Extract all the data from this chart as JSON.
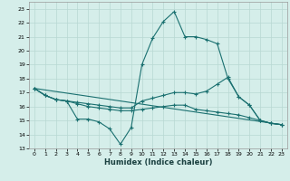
{
  "xlabel": "Humidex (Indice chaleur)",
  "bg_color": "#d5eeea",
  "grid_color": "#b8d8d3",
  "line_color": "#1a7070",
  "xlim": [
    -0.5,
    23.5
  ],
  "ylim": [
    13,
    23.5
  ],
  "yticks": [
    13,
    14,
    15,
    16,
    17,
    18,
    19,
    20,
    21,
    22,
    23
  ],
  "xticks": [
    0,
    1,
    2,
    3,
    4,
    5,
    6,
    7,
    8,
    9,
    10,
    11,
    12,
    13,
    14,
    15,
    16,
    17,
    18,
    19,
    20,
    21,
    22,
    23
  ],
  "line1_x": [
    0,
    1,
    2,
    3,
    4,
    5,
    6,
    7,
    8,
    9,
    10,
    11,
    12,
    13,
    14,
    15,
    16,
    17,
    18,
    19,
    20,
    21,
    22,
    23
  ],
  "line1_y": [
    17.3,
    16.8,
    16.5,
    16.4,
    15.1,
    15.1,
    14.9,
    14.4,
    13.3,
    14.5,
    19.0,
    20.9,
    22.1,
    22.8,
    21.0,
    21.0,
    20.8,
    20.5,
    18.0,
    16.7,
    16.1,
    15.0,
    14.8,
    14.7
  ],
  "line2_x": [
    0,
    1,
    2,
    3,
    4,
    5,
    6,
    7,
    8,
    9,
    10,
    11,
    12,
    13,
    14,
    15,
    16,
    17,
    18,
    19,
    20,
    21,
    22,
    23
  ],
  "line2_y": [
    17.3,
    16.8,
    16.5,
    16.4,
    16.3,
    16.2,
    16.1,
    16.0,
    15.9,
    15.9,
    16.4,
    16.6,
    16.8,
    17.0,
    17.0,
    16.9,
    17.1,
    17.6,
    18.1,
    16.7,
    16.1,
    15.0,
    14.8,
    14.7
  ],
  "line3_x": [
    0,
    1,
    2,
    3,
    4,
    5,
    6,
    7,
    8,
    9,
    10,
    11,
    12,
    13,
    14,
    15,
    16,
    17,
    18,
    19,
    20,
    21,
    22,
    23
  ],
  "line3_y": [
    17.3,
    16.8,
    16.5,
    16.4,
    16.2,
    16.0,
    15.9,
    15.8,
    15.7,
    15.7,
    15.8,
    15.9,
    16.0,
    16.1,
    16.1,
    15.8,
    15.7,
    15.6,
    15.5,
    15.4,
    15.2,
    15.0,
    14.8,
    14.7
  ],
  "line4_x": [
    0,
    23
  ],
  "line4_y": [
    17.3,
    14.7
  ]
}
